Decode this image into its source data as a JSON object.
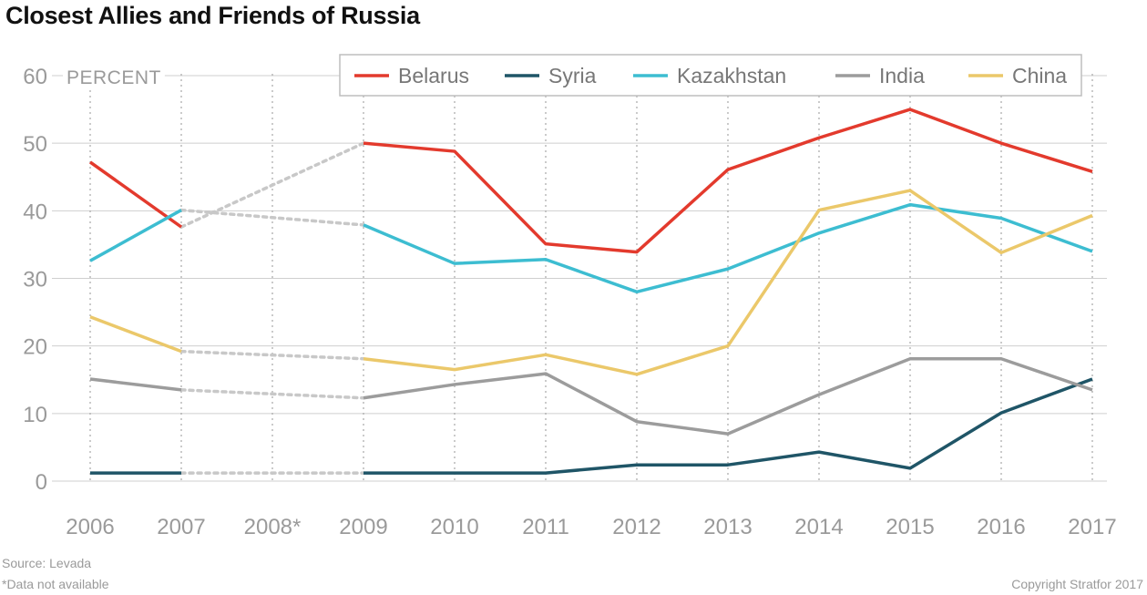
{
  "title": "Closest Allies and Friends of Russia",
  "footer": {
    "source": "Source: Levada",
    "note": "*Data not available",
    "copyright": "Copyright Stratfor 2017"
  },
  "chart_data": {
    "type": "line",
    "title": "Closest Allies and Friends of Russia",
    "ylabel": "PERCENT",
    "xlabel": "",
    "x": [
      "2006",
      "2007",
      "2008*",
      "2009",
      "2010",
      "2011",
      "2012",
      "2013",
      "2014",
      "2015",
      "2016",
      "2017"
    ],
    "yticks": [
      0,
      10,
      20,
      30,
      40,
      50,
      60
    ],
    "ylim": [
      0,
      60
    ],
    "grid": true,
    "legend": "top-right",
    "missing_categories": [
      "2008*"
    ],
    "gap_line_color": "#c8c8c8",
    "series": [
      {
        "name": "Belarus",
        "color": "#e33a2d",
        "values": [
          47.2,
          37.6,
          null,
          50,
          48.8,
          35.1,
          33.9,
          46.1,
          50.8,
          55,
          50,
          45.8
        ]
      },
      {
        "name": "Syria",
        "color": "#1f5567",
        "values": [
          1.2,
          1.2,
          null,
          1.2,
          1.2,
          1.2,
          2.4,
          2.4,
          4.3,
          1.9,
          10.1,
          15.1
        ]
      },
      {
        "name": "Kazakhstan",
        "color": "#3dbdd1",
        "values": [
          32.6,
          40.1,
          null,
          37.9,
          32.2,
          32.8,
          28,
          31.4,
          36.7,
          40.9,
          38.9,
          34
        ]
      },
      {
        "name": "India",
        "color": "#9c9c9c",
        "values": [
          15.1,
          13.5,
          null,
          12.3,
          14.3,
          15.9,
          8.8,
          7,
          12.8,
          18.1,
          18.1,
          13.5
        ]
      },
      {
        "name": "China",
        "color": "#ebc86a",
        "values": [
          24.3,
          19.2,
          null,
          18.1,
          16.5,
          18.7,
          15.8,
          20,
          40.1,
          43,
          33.8,
          39.3
        ]
      }
    ]
  }
}
